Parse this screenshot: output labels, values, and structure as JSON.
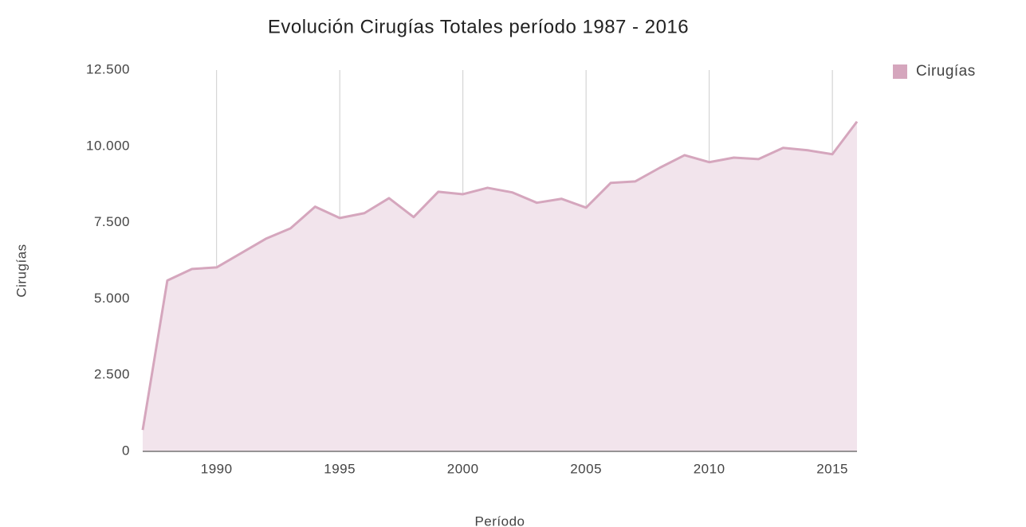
{
  "chart_data": {
    "type": "area",
    "title": "Evolución Cirugías Totales período 1987 - 2016",
    "x_label": "Período",
    "y_label": "Cirugías",
    "x": [
      1987,
      1988,
      1989,
      1990,
      1991,
      1992,
      1993,
      1994,
      1995,
      1996,
      1997,
      1998,
      1999,
      2000,
      2001,
      2002,
      2003,
      2004,
      2005,
      2006,
      2007,
      2008,
      2009,
      2010,
      2011,
      2012,
      2013,
      2014,
      2015,
      2016
    ],
    "series": [
      {
        "name": "Cirugías",
        "color": "#d5a6bd",
        "fill": "#f2e4ec",
        "values": [
          700,
          5600,
          5980,
          6030,
          6500,
          6970,
          7310,
          8020,
          7650,
          7810,
          8300,
          7680,
          8510,
          8430,
          8640,
          8490,
          8150,
          8280,
          7990,
          8800,
          8850,
          9300,
          9710,
          9480,
          9630,
          9580,
          9950,
          9870,
          9740,
          10810
        ]
      }
    ],
    "xlim": [
      1987,
      2016
    ],
    "xticks": [
      1990,
      1995,
      2000,
      2005,
      2010,
      2015
    ],
    "ylim": [
      0,
      12500
    ],
    "yticks": [
      0,
      {
        "value": 2500,
        "label": "2.500"
      },
      {
        "value": 5000,
        "label": "5.000"
      },
      {
        "value": 7500,
        "label": "7.500"
      },
      {
        "value": 10000,
        "label": "10.000"
      },
      {
        "value": 12500,
        "label": "12.500"
      }
    ],
    "grid": "x",
    "legend": "top-right"
  }
}
